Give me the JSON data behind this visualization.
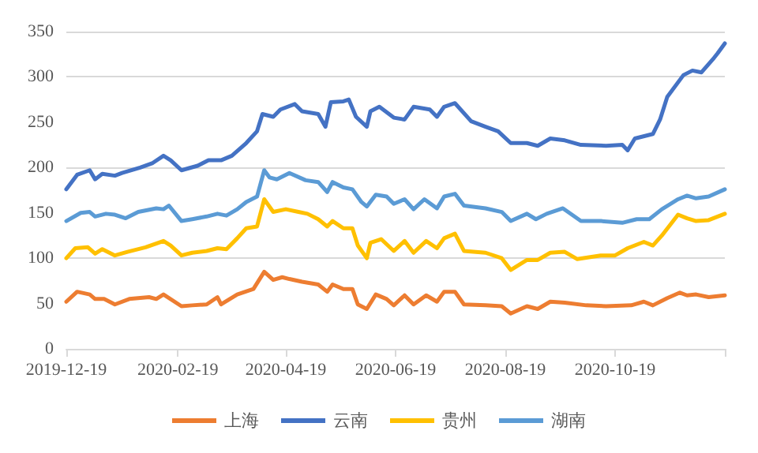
{
  "chart_data": {
    "type": "line",
    "legend": "bottom",
    "grid": "y",
    "marker": "none",
    "line_style": "solid",
    "xlim": [
      "2019-12-19",
      "2020-12-19"
    ],
    "xticks": [
      {
        "value": "2019-12-19",
        "label": "2019-12-19"
      },
      {
        "value": "2020-02-19",
        "label": "2020-02-19"
      },
      {
        "value": "2020-04-19",
        "label": "2020-04-19"
      },
      {
        "value": "2020-06-19",
        "label": "2020-06-19"
      },
      {
        "value": "2020-08-19",
        "label": "2020-08-19"
      },
      {
        "value": "2020-10-19",
        "label": "2020-10-19"
      },
      {
        "value": "2020-12-19",
        "label": null
      }
    ],
    "ylim": [
      0,
      350
    ],
    "yticks": [
      0,
      50,
      100,
      150,
      200,
      250,
      300,
      350
    ],
    "series": [
      {
        "name": "上海",
        "color": "#ed7d31",
        "x": [
          "2019-12-19",
          "2019-12-25",
          "2020-01-01",
          "2020-01-04",
          "2020-01-09",
          "2020-01-15",
          "2020-01-23",
          "2020-02-03",
          "2020-02-07",
          "2020-02-11",
          "2020-02-21",
          "2020-02-27",
          "2020-03-06",
          "2020-03-12",
          "2020-03-14",
          "2020-03-23",
          "2020-04-01",
          "2020-04-07",
          "2020-04-12",
          "2020-04-17",
          "2020-04-21",
          "2020-04-28",
          "2020-05-07",
          "2020-05-12",
          "2020-05-15",
          "2020-05-21",
          "2020-05-26",
          "2020-05-29",
          "2020-06-03",
          "2020-06-08",
          "2020-06-14",
          "2020-06-18",
          "2020-06-24",
          "2020-06-29",
          "2020-07-06",
          "2020-07-12",
          "2020-07-16",
          "2020-07-22",
          "2020-07-27",
          "2020-08-08",
          "2020-08-17",
          "2020-08-22",
          "2020-08-31",
          "2020-09-06",
          "2020-09-13",
          "2020-09-21",
          "2020-10-03",
          "2020-10-14",
          "2020-10-28",
          "2020-11-04",
          "2020-11-09",
          "2020-11-17",
          "2020-11-24",
          "2020-11-28",
          "2020-12-03",
          "2020-12-10",
          "2020-12-19"
        ],
        "values": [
          52,
          63,
          60,
          55,
          55,
          49,
          55,
          57,
          55,
          60,
          47,
          48,
          49,
          57,
          49,
          60,
          66,
          85,
          76,
          79,
          77,
          74,
          71,
          63,
          71,
          66,
          66,
          49,
          44,
          60,
          55,
          48,
          59,
          49,
          59,
          52,
          63,
          63,
          49,
          48,
          47,
          39,
          47,
          44,
          52,
          51,
          48,
          47,
          48,
          52,
          48,
          56,
          62,
          59,
          60,
          57,
          59
        ]
      },
      {
        "name": "云南",
        "color": "#4472c4",
        "x": [
          "2019-12-19",
          "2019-12-25",
          "2020-01-01",
          "2020-01-04",
          "2020-01-08",
          "2020-01-15",
          "2020-01-19",
          "2020-01-29",
          "2020-02-05",
          "2020-02-11",
          "2020-02-15",
          "2020-02-21",
          "2020-03-01",
          "2020-03-07",
          "2020-03-14",
          "2020-03-20",
          "2020-03-28",
          "2020-04-03",
          "2020-04-06",
          "2020-04-12",
          "2020-04-16",
          "2020-04-24",
          "2020-04-28",
          "2020-05-07",
          "2020-05-11",
          "2020-05-14",
          "2020-05-21",
          "2020-05-24",
          "2020-05-28",
          "2020-06-03",
          "2020-06-05",
          "2020-06-10",
          "2020-06-18",
          "2020-06-24",
          "2020-06-29",
          "2020-07-08",
          "2020-07-12",
          "2020-07-16",
          "2020-07-22",
          "2020-07-31",
          "2020-08-08",
          "2020-08-15",
          "2020-08-22",
          "2020-08-31",
          "2020-09-06",
          "2020-09-13",
          "2020-09-21",
          "2020-09-30",
          "2020-10-14",
          "2020-10-23",
          "2020-10-26",
          "2020-10-30",
          "2020-11-09",
          "2020-11-13",
          "2020-11-17",
          "2020-11-26",
          "2020-12-01",
          "2020-12-06",
          "2020-12-13",
          "2020-12-15",
          "2020-12-19"
        ],
        "values": [
          176,
          192,
          197,
          187,
          193,
          191,
          194,
          200,
          205,
          213,
          208,
          197,
          202,
          208,
          208,
          213,
          227,
          240,
          259,
          256,
          264,
          270,
          262,
          259,
          245,
          272,
          273,
          275,
          256,
          245,
          262,
          267,
          255,
          253,
          267,
          264,
          256,
          267,
          271,
          251,
          245,
          240,
          227,
          227,
          224,
          232,
          230,
          225,
          224,
          225,
          219,
          232,
          237,
          253,
          278,
          302,
          307,
          305,
          321,
          326,
          337
        ]
      },
      {
        "name": "贵州",
        "color": "#ffc000",
        "x": [
          "2019-12-19",
          "2019-12-24",
          "2019-12-31",
          "2020-01-04",
          "2020-01-08",
          "2020-01-15",
          "2020-01-22",
          "2020-02-01",
          "2020-02-11",
          "2020-02-15",
          "2020-02-21",
          "2020-02-27",
          "2020-03-06",
          "2020-03-12",
          "2020-03-17",
          "2020-03-23",
          "2020-03-28",
          "2020-04-03",
          "2020-04-07",
          "2020-04-12",
          "2020-04-19",
          "2020-04-26",
          "2020-05-01",
          "2020-05-07",
          "2020-05-12",
          "2020-05-15",
          "2020-05-21",
          "2020-05-26",
          "2020-05-29",
          "2020-06-03",
          "2020-06-05",
          "2020-06-11",
          "2020-06-18",
          "2020-06-24",
          "2020-06-29",
          "2020-07-06",
          "2020-07-12",
          "2020-07-16",
          "2020-07-22",
          "2020-07-27",
          "2020-08-08",
          "2020-08-17",
          "2020-08-22",
          "2020-08-31",
          "2020-09-06",
          "2020-09-13",
          "2020-09-21",
          "2020-09-28",
          "2020-10-11",
          "2020-10-19",
          "2020-10-26",
          "2020-11-04",
          "2020-11-09",
          "2020-11-14",
          "2020-11-23",
          "2020-11-28",
          "2020-12-03",
          "2020-12-10",
          "2020-12-19"
        ],
        "values": [
          100,
          111,
          112,
          105,
          110,
          103,
          107,
          112,
          119,
          114,
          103,
          106,
          108,
          111,
          110,
          122,
          133,
          135,
          165,
          151,
          154,
          151,
          149,
          143,
          135,
          141,
          133,
          133,
          114,
          100,
          117,
          121,
          108,
          119,
          106,
          119,
          111,
          122,
          127,
          108,
          106,
          100,
          87,
          98,
          98,
          106,
          107,
          99,
          103,
          103,
          111,
          118,
          114,
          125,
          148,
          144,
          141,
          142,
          149
        ]
      },
      {
        "name": "湖南",
        "color": "#5b9bd5",
        "x": [
          "2019-12-19",
          "2019-12-27",
          "2020-01-01",
          "2020-01-04",
          "2020-01-10",
          "2020-01-15",
          "2020-01-21",
          "2020-01-28",
          "2020-02-07",
          "2020-02-11",
          "2020-02-14",
          "2020-02-21",
          "2020-02-27",
          "2020-03-06",
          "2020-03-12",
          "2020-03-17",
          "2020-03-23",
          "2020-03-28",
          "2020-04-03",
          "2020-04-07",
          "2020-04-10",
          "2020-04-14",
          "2020-04-21",
          "2020-04-30",
          "2020-05-07",
          "2020-05-12",
          "2020-05-15",
          "2020-05-21",
          "2020-05-26",
          "2020-05-31",
          "2020-06-03",
          "2020-06-08",
          "2020-06-14",
          "2020-06-18",
          "2020-06-24",
          "2020-06-29",
          "2020-07-05",
          "2020-07-12",
          "2020-07-16",
          "2020-07-22",
          "2020-07-27",
          "2020-08-08",
          "2020-08-17",
          "2020-08-22",
          "2020-08-31",
          "2020-09-05",
          "2020-09-11",
          "2020-09-20",
          "2020-09-30",
          "2020-10-11",
          "2020-10-23",
          "2020-10-31",
          "2020-11-07",
          "2020-11-14",
          "2020-11-23",
          "2020-11-28",
          "2020-12-03",
          "2020-12-10",
          "2020-12-19"
        ],
        "values": [
          141,
          150,
          151,
          146,
          149,
          148,
          144,
          151,
          155,
          154,
          158,
          141,
          143,
          146,
          149,
          147,
          154,
          162,
          168,
          197,
          189,
          187,
          194,
          186,
          184,
          173,
          184,
          178,
          176,
          162,
          157,
          170,
          168,
          160,
          165,
          154,
          165,
          155,
          168,
          171,
          158,
          155,
          151,
          141,
          149,
          143,
          149,
          155,
          141,
          141,
          139,
          143,
          143,
          154,
          165,
          169,
          166,
          168,
          176
        ]
      }
    ]
  }
}
